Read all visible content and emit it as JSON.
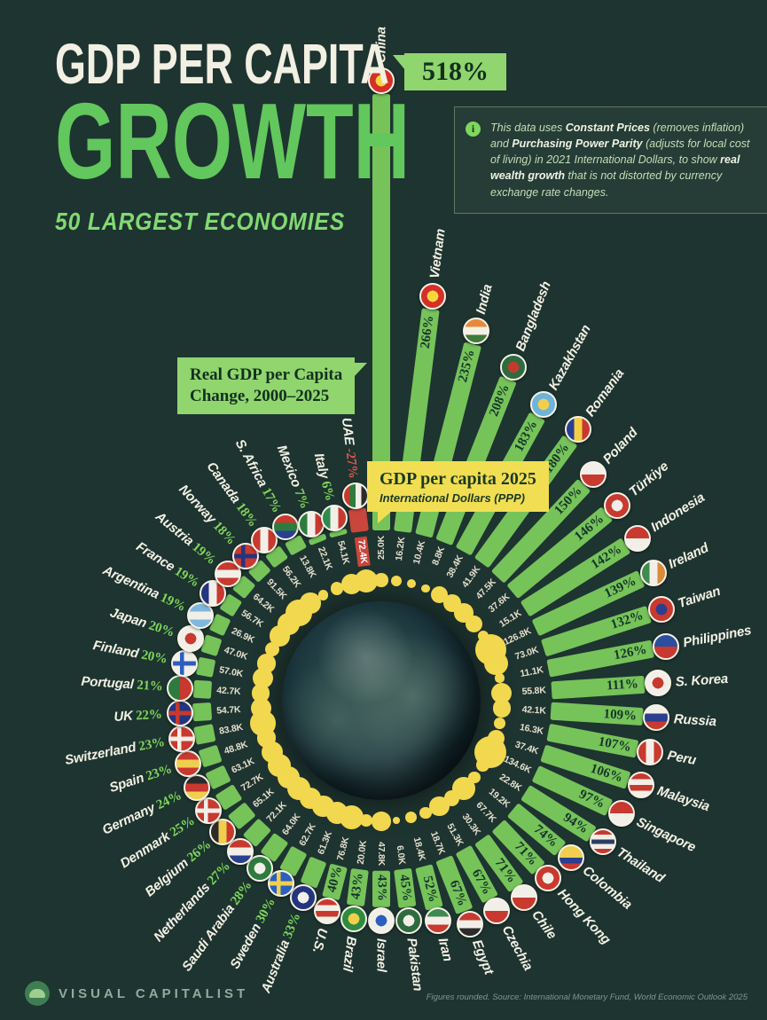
{
  "title": {
    "line1": "GDP PER CAPITA",
    "line2": "GROWTH",
    "subtitle": "50 LARGEST ECONOMIES"
  },
  "callouts": {
    "change_line1": "Real GDP per Capita",
    "change_line2": "Change, 2000–2025",
    "china_pct": "518%",
    "gdp2025_title": "GDP per capita 2025",
    "gdp2025_sub": "International Dollars (PPP)"
  },
  "info_note": {
    "icon": "info-icon",
    "segments": [
      {
        "t": "This data uses ",
        "b": 0
      },
      {
        "t": "Constant Prices",
        "b": 1
      },
      {
        "t": " (removes inflation) and ",
        "b": 0
      },
      {
        "t": "Purchasing Power Parity",
        "b": 1
      },
      {
        "t": " (adjusts for local cost of living) in 2021 International Dollars, to show ",
        "b": 0
      },
      {
        "t": "real wealth growth",
        "b": 1
      },
      {
        "t": " that is not distorted by currency exchange rate changes.",
        "b": 0
      }
    ]
  },
  "footer": {
    "brand": "VISUAL CAPITALIST",
    "source": "Figures rounded. Source: International Monetary Fund, World Economic Outlook 2025"
  },
  "colors": {
    "background": "#1e3430",
    "bar": "#76c35a",
    "bar_negative": "#c9463c",
    "dot": "#f2d84e",
    "accent_green": "#7fd65c",
    "callout_green": "#90d56e",
    "callout_yellow": "#f2de52",
    "negative_red": "#e0564a"
  },
  "chart_data": {
    "type": "bar",
    "variant": "radial",
    "title": "Real GDP per Capita Change, 2000-2025",
    "units": {
      "growth": "% change 2000-2025",
      "gdp_2025": "2025 GDP per capita, International Dollars (PPP)"
    },
    "legend": "bars = growth %, yellow dots + inner labels = GDP per capita 2025",
    "countries": [
      {
        "name": "China",
        "growth_pct": 518,
        "pct_label": "518%",
        "gdp_2025": 25.0,
        "gdp_label": "25.0K",
        "flag": {
          "t": "d",
          "c": [
            "#d53027",
            "#f7d63e"
          ]
        },
        "pct_in_callout": true
      },
      {
        "name": "Vietnam",
        "growth_pct": 266,
        "pct_label": "266%",
        "gdp_2025": 16.2,
        "gdp_label": "16.2K",
        "flag": {
          "t": "d",
          "c": [
            "#d53027",
            "#f7d63e"
          ]
        }
      },
      {
        "name": "India",
        "growth_pct": 235,
        "pct_label": "235%",
        "gdp_2025": 10.4,
        "gdp_label": "10.4K",
        "flag": {
          "t": "h",
          "c": [
            "#e8883a",
            "#f5f0e6",
            "#3f7a3a"
          ]
        }
      },
      {
        "name": "Bangladesh",
        "growth_pct": 208,
        "pct_label": "208%",
        "gdp_2025": 8.8,
        "gdp_label": "8.8K",
        "flag": {
          "t": "d",
          "c": [
            "#2e6b3f",
            "#c23b2e"
          ]
        }
      },
      {
        "name": "Kazakhstan",
        "growth_pct": 183,
        "pct_label": "183%",
        "gdp_2025": 38.4,
        "gdp_label": "38.4K",
        "flag": {
          "t": "d",
          "c": [
            "#6fb3d9",
            "#f0cf4e"
          ]
        }
      },
      {
        "name": "Romania",
        "growth_pct": 180,
        "pct_label": "180%",
        "gdp_2025": 41.9,
        "gdp_label": "41.9K",
        "flag": {
          "t": "v",
          "c": [
            "#2a3f8f",
            "#f3cf45",
            "#c8392f"
          ]
        }
      },
      {
        "name": "Poland",
        "growth_pct": 150,
        "pct_label": "150%",
        "gdp_2025": 47.5,
        "gdp_label": "47.5K",
        "flag": {
          "t": "h",
          "c": [
            "#f2efe8",
            "#c8392f"
          ]
        }
      },
      {
        "name": "Türkiye",
        "growth_pct": 146,
        "pct_label": "146%",
        "gdp_2025": 37.6,
        "gdp_label": "37.6K",
        "flag": {
          "t": "d",
          "c": [
            "#c8392f",
            "#f2efe8"
          ]
        }
      },
      {
        "name": "Indonesia",
        "growth_pct": 142,
        "pct_label": "142%",
        "gdp_2025": 15.1,
        "gdp_label": "15.1K",
        "flag": {
          "t": "h",
          "c": [
            "#c8392f",
            "#f2efe8"
          ]
        }
      },
      {
        "name": "Ireland",
        "growth_pct": 139,
        "pct_label": "139%",
        "gdp_2025": 126.8,
        "gdp_label": "126.8K",
        "flag": {
          "t": "v",
          "c": [
            "#3f8a4f",
            "#f2efe8",
            "#d98a3a"
          ]
        }
      },
      {
        "name": "Taiwan",
        "growth_pct": 132,
        "pct_label": "132%",
        "gdp_2025": 73.0,
        "gdp_label": "73.0K",
        "flag": {
          "t": "d",
          "c": [
            "#c8392f",
            "#2a3f8f"
          ]
        }
      },
      {
        "name": "Philippines",
        "growth_pct": 126,
        "pct_label": "126%",
        "gdp_2025": 11.1,
        "gdp_label": "11.1K",
        "flag": {
          "t": "h",
          "c": [
            "#2a4f9f",
            "#c8392f"
          ]
        }
      },
      {
        "name": "S. Korea",
        "growth_pct": 111,
        "pct_label": "111%",
        "gdp_2025": 55.8,
        "gdp_label": "55.8K",
        "flag": {
          "t": "d",
          "c": [
            "#f2efe8",
            "#c8392f"
          ]
        }
      },
      {
        "name": "Russia",
        "growth_pct": 109,
        "pct_label": "109%",
        "gdp_2025": 42.1,
        "gdp_label": "42.1K",
        "flag": {
          "t": "h",
          "c": [
            "#f2efe8",
            "#2a3f8f",
            "#c8392f"
          ]
        }
      },
      {
        "name": "Peru",
        "growth_pct": 107,
        "pct_label": "107%",
        "gdp_2025": 16.3,
        "gdp_label": "16.3K",
        "flag": {
          "t": "v",
          "c": [
            "#c8392f",
            "#f2efe8",
            "#c8392f"
          ]
        }
      },
      {
        "name": "Malaysia",
        "growth_pct": 106,
        "pct_label": "106%",
        "gdp_2025": 37.4,
        "gdp_label": "37.4K",
        "flag": {
          "t": "h",
          "c": [
            "#c8392f",
            "#f2efe8",
            "#c8392f",
            "#f2efe8"
          ]
        }
      },
      {
        "name": "Singapore",
        "growth_pct": 97,
        "pct_label": "97%",
        "gdp_2025": 134.6,
        "gdp_label": "134.6K",
        "flag": {
          "t": "h",
          "c": [
            "#c8392f",
            "#f2efe8"
          ]
        }
      },
      {
        "name": "Thailand",
        "growth_pct": 94,
        "pct_label": "94%",
        "gdp_2025": 22.8,
        "gdp_label": "22.8K",
        "flag": {
          "t": "h",
          "c": [
            "#c8392f",
            "#f2efe8",
            "#2a3f5f",
            "#f2efe8",
            "#c8392f"
          ]
        }
      },
      {
        "name": "Colombia",
        "growth_pct": 74,
        "pct_label": "74%",
        "gdp_2025": 19.2,
        "gdp_label": "19.2K",
        "flag": {
          "t": "h",
          "c": [
            "#f0cf4e",
            "#f0cf4e",
            "#2a3f8f",
            "#c8392f"
          ]
        }
      },
      {
        "name": "Hong Kong",
        "growth_pct": 71,
        "pct_label": "71%",
        "gdp_2025": 67.7,
        "gdp_label": "67.7K",
        "flag": {
          "t": "d",
          "c": [
            "#c8392f",
            "#f2efe8"
          ]
        }
      },
      {
        "name": "Chile",
        "growth_pct": 71,
        "pct_label": "71%",
        "gdp_2025": 30.3,
        "gdp_label": "30.3K",
        "flag": {
          "t": "h",
          "c": [
            "#f2efe8",
            "#c8392f"
          ]
        }
      },
      {
        "name": "Czechia",
        "growth_pct": 67,
        "pct_label": "67%",
        "gdp_2025": 51.3,
        "gdp_label": "51.3K",
        "flag": {
          "t": "h",
          "c": [
            "#f2efe8",
            "#c8392f"
          ]
        }
      },
      {
        "name": "Egypt",
        "growth_pct": 67,
        "pct_label": "67%",
        "gdp_2025": 18.7,
        "gdp_label": "18.7K",
        "flag": {
          "t": "h",
          "c": [
            "#c8392f",
            "#f2efe8",
            "#2b2b2b"
          ]
        }
      },
      {
        "name": "Iran",
        "growth_pct": 52,
        "pct_label": "52%",
        "gdp_2025": 18.4,
        "gdp_label": "18.4K",
        "flag": {
          "t": "h",
          "c": [
            "#3f8a4f",
            "#f2efe8",
            "#c8392f"
          ]
        }
      },
      {
        "name": "Pakistan",
        "growth_pct": 45,
        "pct_label": "45%",
        "gdp_2025": 6.0,
        "gdp_label": "6.0K",
        "flag": {
          "t": "d",
          "c": [
            "#2e6b3f",
            "#f2efe8"
          ]
        }
      },
      {
        "name": "Israel",
        "growth_pct": 43,
        "pct_label": "43%",
        "gdp_2025": 47.8,
        "gdp_label": "47.8K",
        "flag": {
          "t": "d",
          "c": [
            "#f2efe8",
            "#2a5fbf"
          ]
        }
      },
      {
        "name": "Brazil",
        "growth_pct": 43,
        "pct_label": "43%",
        "gdp_2025": 20.0,
        "gdp_label": "20.0K",
        "flag": {
          "t": "d",
          "c": [
            "#2e8b3f",
            "#f0cf4e"
          ]
        }
      },
      {
        "name": "U.S.",
        "growth_pct": 40,
        "pct_label": "40%",
        "gdp_2025": 76.8,
        "gdp_label": "76.8K",
        "flag": {
          "t": "h",
          "c": [
            "#c8392f",
            "#f2efe8",
            "#c8392f",
            "#f2efe8"
          ]
        }
      },
      {
        "name": "Australia",
        "growth_pct": 33,
        "pct_label": "33%",
        "gdp_2025": 61.3,
        "gdp_label": "61.3K",
        "flag": {
          "t": "d",
          "c": [
            "#24357f",
            "#f2efe8"
          ]
        }
      },
      {
        "name": "Sweden",
        "growth_pct": 30,
        "pct_label": "30%",
        "gdp_2025": 62.7,
        "gdp_label": "62.7K",
        "flag": {
          "t": "c",
          "c": [
            "#2a5fbf",
            "#f0cf4e"
          ]
        }
      },
      {
        "name": "Saudi Arabia",
        "growth_pct": 28,
        "pct_label": "28%",
        "gdp_2025": 64.0,
        "gdp_label": "64.0K",
        "flag": {
          "t": "d",
          "c": [
            "#2e7b3f",
            "#f2efe8"
          ]
        }
      },
      {
        "name": "Netherlands",
        "growth_pct": 27,
        "pct_label": "27%",
        "gdp_2025": 72.1,
        "gdp_label": "72.1K",
        "flag": {
          "t": "h",
          "c": [
            "#c8392f",
            "#f2efe8",
            "#2a3f8f"
          ]
        }
      },
      {
        "name": "Belgium",
        "growth_pct": 26,
        "pct_label": "26%",
        "gdp_2025": 65.1,
        "gdp_label": "65.1K",
        "flag": {
          "t": "v",
          "c": [
            "#2b2b2b",
            "#f0cf4e",
            "#c8392f"
          ]
        }
      },
      {
        "name": "Denmark",
        "growth_pct": 25,
        "pct_label": "25%",
        "gdp_2025": 72.7,
        "gdp_label": "72.7K",
        "flag": {
          "t": "c",
          "c": [
            "#c8392f",
            "#f2efe8"
          ]
        }
      },
      {
        "name": "Germany",
        "growth_pct": 24,
        "pct_label": "24%",
        "gdp_2025": 63.1,
        "gdp_label": "63.1K",
        "flag": {
          "t": "h",
          "c": [
            "#2b2b2b",
            "#c8392f",
            "#f0cf4e"
          ]
        }
      },
      {
        "name": "Spain",
        "growth_pct": 23,
        "pct_label": "23%",
        "gdp_2025": 48.8,
        "gdp_label": "48.8K",
        "flag": {
          "t": "h",
          "c": [
            "#c8392f",
            "#f0cf4e",
            "#c8392f"
          ]
        }
      },
      {
        "name": "Switzerland",
        "growth_pct": 23,
        "pct_label": "23%",
        "gdp_2025": 83.8,
        "gdp_label": "83.8K",
        "flag": {
          "t": "c",
          "c": [
            "#c8392f",
            "#f2efe8"
          ]
        }
      },
      {
        "name": "UK",
        "growth_pct": 22,
        "pct_label": "22%",
        "gdp_2025": 54.7,
        "gdp_label": "54.7K",
        "flag": {
          "t": "c",
          "c": [
            "#24357f",
            "#c8392f"
          ]
        }
      },
      {
        "name": "Portugal",
        "growth_pct": 21,
        "pct_label": "21%",
        "gdp_2025": 42.7,
        "gdp_label": "42.7K",
        "flag": {
          "t": "v",
          "c": [
            "#2e7b3f",
            "#c8392f"
          ]
        }
      },
      {
        "name": "Finland",
        "growth_pct": 20,
        "pct_label": "20%",
        "gdp_2025": 57.0,
        "gdp_label": "57.0K",
        "flag": {
          "t": "c",
          "c": [
            "#f2efe8",
            "#2a5fbf"
          ]
        }
      },
      {
        "name": "Japan",
        "growth_pct": 20,
        "pct_label": "20%",
        "gdp_2025": 47.0,
        "gdp_label": "47.0K",
        "flag": {
          "t": "d",
          "c": [
            "#f2efe8",
            "#c8392f"
          ]
        }
      },
      {
        "name": "Argentina",
        "growth_pct": 19,
        "pct_label": "19%",
        "gdp_2025": 26.9,
        "gdp_label": "26.9K",
        "flag": {
          "t": "h",
          "c": [
            "#7fb8dd",
            "#f2efe8",
            "#7fb8dd"
          ]
        }
      },
      {
        "name": "France",
        "growth_pct": 19,
        "pct_label": "19%",
        "gdp_2025": 56.7,
        "gdp_label": "56.7K",
        "flag": {
          "t": "v",
          "c": [
            "#24357f",
            "#f2efe8",
            "#c8392f"
          ]
        }
      },
      {
        "name": "Austria",
        "growth_pct": 19,
        "pct_label": "19%",
        "gdp_2025": 64.2,
        "gdp_label": "64.2K",
        "flag": {
          "t": "h",
          "c": [
            "#c8392f",
            "#f2efe8",
            "#c8392f"
          ]
        }
      },
      {
        "name": "Norway",
        "growth_pct": 18,
        "pct_label": "18%",
        "gdp_2025": 91.5,
        "gdp_label": "91.5K",
        "flag": {
          "t": "c",
          "c": [
            "#c8392f",
            "#24357f"
          ]
        }
      },
      {
        "name": "Canada",
        "growth_pct": 18,
        "pct_label": "18%",
        "gdp_2025": 56.2,
        "gdp_label": "56.2K",
        "flag": {
          "t": "v",
          "c": [
            "#c8392f",
            "#f2efe8",
            "#c8392f"
          ]
        }
      },
      {
        "name": "S. Africa",
        "growth_pct": 17,
        "pct_label": "17%",
        "gdp_2025": 13.8,
        "gdp_label": "13.8K",
        "flag": {
          "t": "h",
          "c": [
            "#c8392f",
            "#2e7b3f",
            "#2a3f8f"
          ]
        }
      },
      {
        "name": "Mexico",
        "growth_pct": 7,
        "pct_label": "7%",
        "gdp_2025": 22.1,
        "gdp_label": "22.1K",
        "flag": {
          "t": "v",
          "c": [
            "#2e7b3f",
            "#f2efe8",
            "#c8392f"
          ]
        }
      },
      {
        "name": "Italy",
        "growth_pct": 6,
        "pct_label": "6%",
        "gdp_2025": 54.1,
        "gdp_label": "54.1K",
        "flag": {
          "t": "v",
          "c": [
            "#2e8b4f",
            "#f2efe8",
            "#c8392f"
          ]
        }
      },
      {
        "name": "UAE",
        "growth_pct": -27,
        "pct_label": "-27%",
        "gdp_2025": 72.4,
        "gdp_label": "72.4K",
        "flag": {
          "t": "v",
          "c": [
            "#c8392f",
            "#2e7b3f",
            "#f2efe8",
            "#2b2b2b"
          ]
        },
        "negative": true
      }
    ]
  }
}
